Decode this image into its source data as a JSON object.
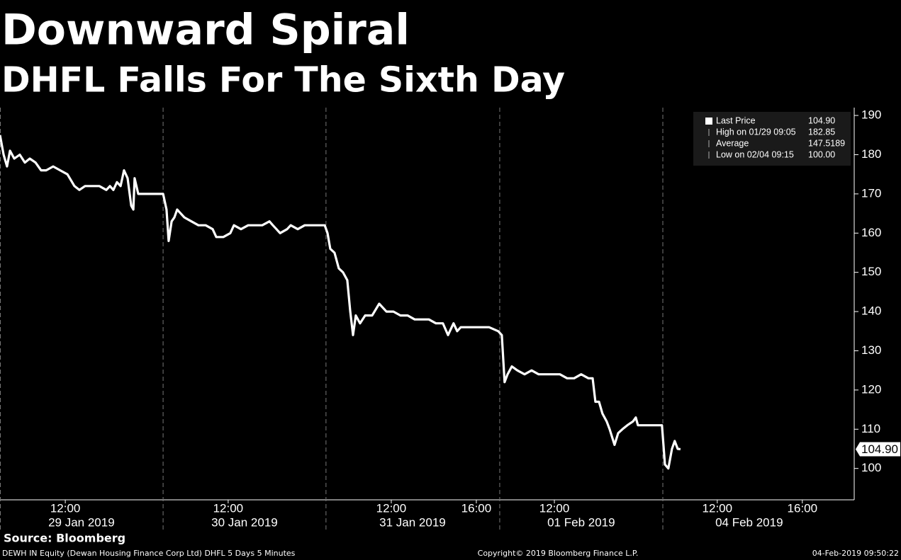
{
  "chart_data": {
    "type": "line",
    "title": "Downward Spiral",
    "subtitle": "DHFL Falls For The Sixth Day",
    "source": "Source: Bloomberg",
    "footer_left": "DEWH IN Equity (Dewan Housing Finance Corp Ltd) DHFL 5 Days 5 Minutes",
    "footer_center": "Copyright© 2019 Bloomberg Finance L.P.",
    "footer_right": "04-Feb-2019 09:50:22",
    "x": [
      0,
      0.17,
      0.33,
      0.47,
      0.67,
      0.93,
      1.17,
      1.4,
      1.67,
      1.93,
      2.17,
      2.5,
      2.83,
      3.17,
      3.5,
      3.73,
      4,
      4.33,
      4.67,
      5,
      5.17,
      5.33,
      5.5,
      5.67,
      5.83,
      6,
      6.17,
      6.27,
      6.33,
      6.5,
      7,
      7.67,
      7.83,
      7.93,
      8.07,
      8.2,
      8.33,
      8.5,
      8.67,
      9,
      9.33,
      9.67,
      10,
      10.17,
      10.5,
      10.83,
      11,
      11.33,
      11.67,
      12,
      12.33,
      12.67,
      12.83,
      13,
      13.17,
      13.5,
      13.67,
      14,
      14.33,
      15.27,
      15.4,
      15.53,
      15.73,
      15.93,
      16.13,
      16.33,
      16.47,
      16.6,
      16.73,
      16.93,
      17.17,
      17.5,
      17.83,
      18.17,
      18.5,
      18.83,
      19.17,
      19.5,
      19.83,
      20.17,
      20.5,
      20.83,
      21.07,
      21.33,
      21.5,
      21.67,
      22,
      23,
      23.43,
      23.6,
      23.73,
      23.87,
      24.07,
      24.33,
      24.67,
      25,
      25.33,
      25.67,
      26.33,
      26.67,
      27,
      27.33,
      27.67,
      27.87,
      28,
      28.17,
      28.33,
      28.53,
      28.67,
      28.9,
      29.07,
      29.27,
      29.5,
      29.77,
      29.9,
      30,
      31,
      31.13,
      31.27,
      31.43,
      31.6,
      31.73,
      31.87,
      32
    ],
    "series": [
      {
        "name": "Last Price",
        "color": "#ffffff",
        "values": [
          185,
          180,
          177,
          181,
          179,
          180,
          178,
          179,
          178,
          176,
          176,
          177,
          176,
          175,
          172,
          171,
          172,
          172,
          172,
          171,
          172,
          171,
          173,
          172,
          176,
          174,
          167,
          166,
          174,
          170,
          170,
          170,
          166,
          158,
          163,
          164,
          166,
          165,
          164,
          163,
          162,
          162,
          161,
          159,
          159,
          160,
          162,
          161,
          162,
          162,
          162,
          163,
          162,
          161,
          160,
          161,
          162,
          161,
          162,
          162,
          160,
          156,
          155,
          151,
          150,
          148,
          140,
          134,
          139,
          137,
          139,
          139,
          142,
          140,
          140,
          139,
          139,
          138,
          138,
          138,
          137,
          137,
          134,
          137,
          135,
          136,
          136,
          136,
          135,
          134,
          122,
          124,
          126,
          125,
          124,
          125,
          124,
          124,
          124,
          123,
          123,
          124,
          123,
          123,
          117,
          117,
          114,
          112,
          110,
          106,
          109,
          110,
          111,
          112,
          113,
          111,
          111,
          111,
          101,
          100,
          105,
          107,
          105,
          104.9
        ]
      }
    ],
    "xlim": [
      0,
      40.17
    ],
    "xticks": [
      {
        "value": 3.07,
        "label": "12:00"
      },
      {
        "value": 10.73,
        "label": "12:00"
      },
      {
        "value": 18.4,
        "label": "12:00"
      },
      {
        "value": 22.4,
        "label": "16:00"
      },
      {
        "value": 26.07,
        "label": "12:00"
      },
      {
        "value": 33.73,
        "label": "12:00"
      },
      {
        "value": 37.73,
        "label": "16:00"
      }
    ],
    "xdays": [
      {
        "value": 3.83,
        "label": "29 Jan 2019"
      },
      {
        "value": 11.5,
        "label": "30 Jan 2019"
      },
      {
        "value": 19.4,
        "label": "31 Jan 2019"
      },
      {
        "value": 27.33,
        "label": "01 Feb 2019"
      },
      {
        "value": 35.23,
        "label": "04 Feb 2019"
      }
    ],
    "day_breaks": [
      7.67,
      15.33,
      23.5,
      31.17
    ],
    "ylim": [
      92,
      192
    ],
    "yticks": [
      100,
      110,
      120,
      130,
      140,
      150,
      160,
      170,
      180,
      190
    ],
    "last_value": 104.9,
    "last_label": "104.90",
    "legend": [
      {
        "label": "Last Price",
        "value": 104.9,
        "value_label": "104.90"
      },
      {
        "label": "High on 01/29 09:05",
        "value": 182.85
      },
      {
        "label": "Average",
        "value": 147.5189
      },
      {
        "label": "Low on 02/04 09:15",
        "value": 100,
        "value_label": "100.00"
      }
    ]
  }
}
